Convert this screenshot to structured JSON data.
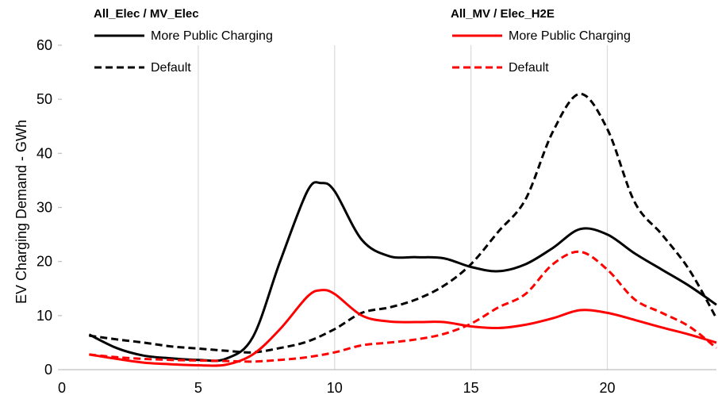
{
  "chart_data": {
    "type": "line",
    "ylabel": "EV Charging Demand - GWh",
    "xlabel": "",
    "xlim": [
      0,
      24
    ],
    "ylim": [
      0,
      60
    ],
    "xticks": [
      0,
      5,
      10,
      15,
      20
    ],
    "yticks": [
      0,
      10,
      20,
      30,
      40,
      50,
      60
    ],
    "grid": "vertical",
    "legend_groups": [
      {
        "title": "All_Elec / MV_Elec",
        "position": "top-left",
        "entries": [
          "More Public Charging",
          "Default"
        ]
      },
      {
        "title": "All_MV / Elec_H2E",
        "position": "top-right",
        "entries": [
          "More Public Charging",
          "Default"
        ]
      }
    ],
    "series": [
      {
        "name": "More Public Charging",
        "group": "All_Elec / MV_Elec",
        "color": "#000000",
        "dash": "solid",
        "x": [
          1,
          2,
          3,
          4,
          5,
          6,
          7,
          8,
          9,
          9.5,
          10,
          11,
          12,
          13,
          14,
          15,
          16,
          17,
          18,
          19,
          20,
          21,
          22,
          23,
          24
        ],
        "y": [
          6.5,
          4.0,
          2.6,
          2.1,
          1.8,
          2.0,
          6.0,
          20.0,
          33.0,
          34.5,
          33.0,
          24.0,
          21.0,
          20.8,
          20.6,
          19.0,
          18.2,
          19.5,
          22.5,
          26.0,
          25.0,
          21.5,
          18.5,
          15.5,
          12.0
        ]
      },
      {
        "name": "Default",
        "group": "All_Elec / MV_Elec",
        "color": "#000000",
        "dash": "dashed",
        "x": [
          1,
          2,
          3,
          4,
          5,
          6,
          7,
          8,
          9,
          10,
          11,
          12,
          13,
          14,
          15,
          16,
          17,
          18,
          19,
          20,
          21,
          22,
          23,
          24
        ],
        "y": [
          6.3,
          5.6,
          5.0,
          4.3,
          3.9,
          3.5,
          3.2,
          4.0,
          5.2,
          7.5,
          10.5,
          11.5,
          13.0,
          15.5,
          19.5,
          25.5,
          31.5,
          44.0,
          51.0,
          44.5,
          31.0,
          25.0,
          18.5,
          9.5
        ]
      },
      {
        "name": "More Public Charging",
        "group": "All_MV / Elec_H2E",
        "color": "#ff0000",
        "dash": "solid",
        "x": [
          1,
          2,
          3,
          4,
          5,
          6,
          7,
          8,
          9,
          9.5,
          10,
          11,
          12,
          13,
          14,
          15,
          16,
          17,
          18,
          19,
          20,
          21,
          22,
          23,
          24
        ],
        "y": [
          2.8,
          2.0,
          1.3,
          1.0,
          0.8,
          0.9,
          2.8,
          7.5,
          13.5,
          14.7,
          14.0,
          10.0,
          8.9,
          8.8,
          8.8,
          8.0,
          7.7,
          8.3,
          9.5,
          11.0,
          10.5,
          9.2,
          7.8,
          6.5,
          5.0
        ]
      },
      {
        "name": "Default",
        "group": "All_MV / Elec_H2E",
        "color": "#ff0000",
        "dash": "dashed",
        "x": [
          1,
          2,
          3,
          4,
          5,
          6,
          7,
          8,
          9,
          10,
          11,
          12,
          13,
          14,
          15,
          16,
          17,
          18,
          19,
          20,
          21,
          22,
          23,
          24
        ],
        "y": [
          2.8,
          2.3,
          2.0,
          1.8,
          1.7,
          1.6,
          1.5,
          1.8,
          2.3,
          3.2,
          4.5,
          5.0,
          5.6,
          6.6,
          8.5,
          11.5,
          14.0,
          19.5,
          21.8,
          18.5,
          13.0,
          10.5,
          8.0,
          4.0
        ]
      }
    ]
  }
}
